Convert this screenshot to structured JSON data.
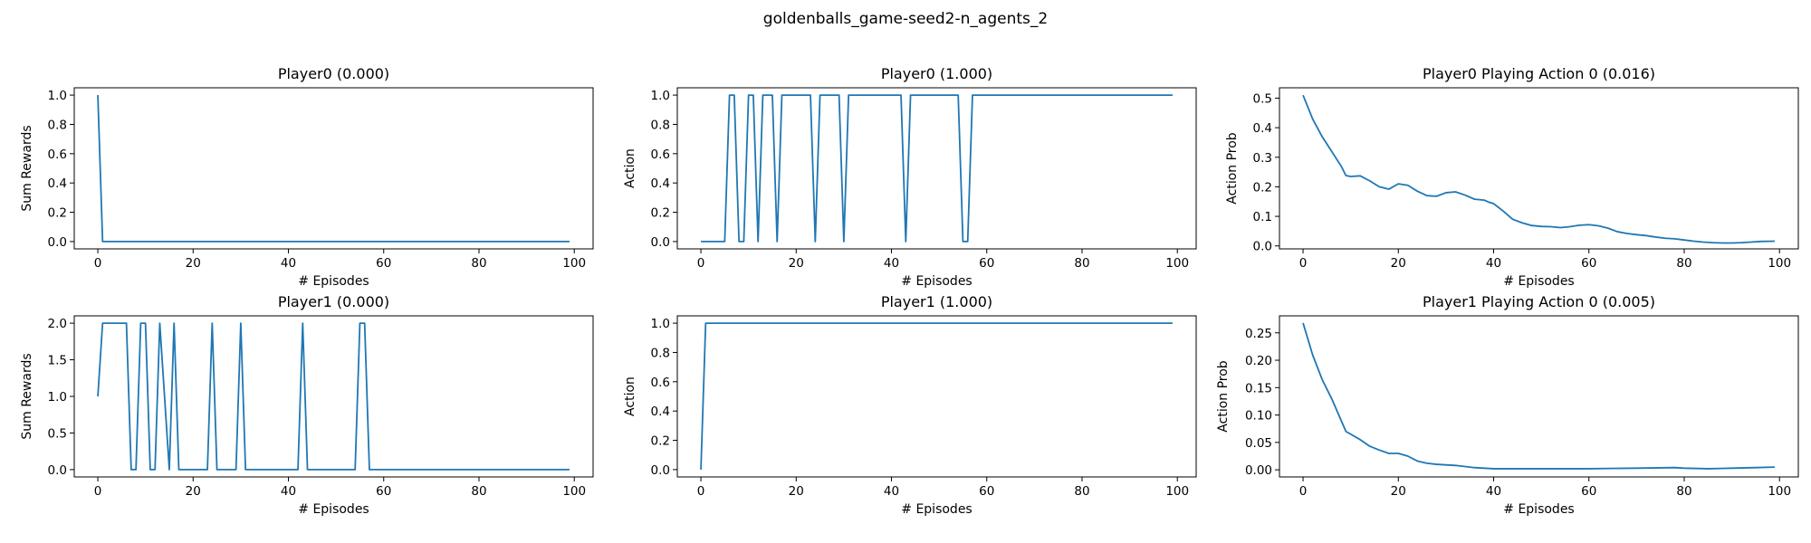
{
  "figure": {
    "title": "goldenballs_game-seed2-n_agents_2"
  },
  "chart_data": [
    {
      "type": "line",
      "title": "Player0 (0.000)",
      "xlabel": "# Episodes",
      "ylabel": "Sum Rewards",
      "xlim": [
        -4.95,
        103.95
      ],
      "ylim": [
        -0.05,
        1.05
      ],
      "xticks": [
        0,
        20,
        40,
        60,
        80,
        100
      ],
      "yticks": [
        0.0,
        0.2,
        0.4,
        0.6,
        0.8,
        1.0
      ],
      "ytick_decimals": 1,
      "series": [
        {
          "x": [
            0,
            1,
            99
          ],
          "y": [
            1,
            0,
            0
          ]
        }
      ]
    },
    {
      "type": "line",
      "title": "Player0 (1.000)",
      "xlabel": "# Episodes",
      "ylabel": "Action",
      "xlim": [
        -4.95,
        103.95
      ],
      "ylim": [
        -0.05,
        1.05
      ],
      "xticks": [
        0,
        20,
        40,
        60,
        80,
        100
      ],
      "yticks": [
        0.0,
        0.2,
        0.4,
        0.6,
        0.8,
        1.0
      ],
      "ytick_decimals": 1,
      "series": [
        {
          "x": [
            0,
            5,
            6,
            7,
            8,
            9,
            10,
            11,
            12,
            13,
            15,
            16,
            17,
            23,
            24,
            25,
            29,
            30,
            31,
            42,
            43,
            44,
            54,
            55,
            56,
            57,
            99
          ],
          "y": [
            0,
            0,
            1,
            1,
            0,
            0,
            1,
            1,
            0,
            1,
            1,
            0,
            1,
            1,
            0,
            1,
            1,
            0,
            1,
            1,
            0,
            1,
            1,
            0,
            0,
            1,
            1
          ]
        }
      ]
    },
    {
      "type": "line",
      "title": "Player0 Playing Action 0 (0.016)",
      "xlabel": "# Episodes",
      "ylabel": "Action Prob",
      "xlim": [
        -4.95,
        103.95
      ],
      "ylim": [
        -0.01,
        0.535
      ],
      "xticks": [
        0,
        20,
        40,
        60,
        80,
        100
      ],
      "yticks": [
        0.0,
        0.1,
        0.2,
        0.3,
        0.4,
        0.5
      ],
      "ytick_decimals": 1,
      "series": [
        {
          "x": [
            0,
            2,
            4,
            6,
            8,
            9,
            10,
            12,
            14,
            16,
            18,
            20,
            22,
            24,
            26,
            28,
            30,
            32,
            34,
            36,
            38,
            39,
            40,
            42,
            44,
            46,
            48,
            50,
            52,
            54,
            56,
            58,
            60,
            62,
            64,
            66,
            68,
            70,
            72,
            74,
            76,
            78,
            80,
            82,
            84,
            86,
            88,
            90,
            92,
            94,
            96,
            99
          ],
          "y": [
            0.51,
            0.43,
            0.37,
            0.32,
            0.27,
            0.238,
            0.235,
            0.237,
            0.22,
            0.2,
            0.192,
            0.21,
            0.205,
            0.185,
            0.17,
            0.168,
            0.18,
            0.183,
            0.172,
            0.158,
            0.155,
            0.148,
            0.143,
            0.118,
            0.09,
            0.078,
            0.069,
            0.066,
            0.065,
            0.062,
            0.065,
            0.07,
            0.072,
            0.068,
            0.06,
            0.048,
            0.042,
            0.038,
            0.035,
            0.03,
            0.026,
            0.024,
            0.02,
            0.016,
            0.013,
            0.011,
            0.01,
            0.01,
            0.011,
            0.013,
            0.015,
            0.016
          ]
        }
      ]
    },
    {
      "type": "line",
      "title": "Player1 (0.000)",
      "xlabel": "# Episodes",
      "ylabel": "Sum Rewards",
      "xlim": [
        -4.95,
        103.95
      ],
      "ylim": [
        -0.1,
        2.1
      ],
      "xticks": [
        0,
        20,
        40,
        60,
        80,
        100
      ],
      "yticks": [
        0.0,
        0.5,
        1.0,
        1.5,
        2.0
      ],
      "ytick_decimals": 1,
      "series": [
        {
          "x": [
            0,
            1,
            5,
            6,
            7,
            8,
            9,
            10,
            11,
            12,
            13,
            15,
            16,
            17,
            23,
            24,
            25,
            29,
            30,
            31,
            42,
            43,
            44,
            54,
            55,
            56,
            57,
            99
          ],
          "y": [
            1,
            2,
            2,
            2,
            0,
            0,
            2,
            2,
            0,
            0,
            2,
            0,
            2,
            0,
            0,
            2,
            0,
            0,
            2,
            0,
            0,
            2,
            0,
            0,
            2,
            2,
            0,
            0
          ]
        }
      ]
    },
    {
      "type": "line",
      "title": "Player1 (1.000)",
      "xlabel": "# Episodes",
      "ylabel": "Action",
      "xlim": [
        -4.95,
        103.95
      ],
      "ylim": [
        -0.05,
        1.05
      ],
      "xticks": [
        0,
        20,
        40,
        60,
        80,
        100
      ],
      "yticks": [
        0.0,
        0.2,
        0.4,
        0.6,
        0.8,
        1.0
      ],
      "ytick_decimals": 1,
      "series": [
        {
          "x": [
            0,
            1,
            99
          ],
          "y": [
            0,
            1,
            1
          ]
        }
      ]
    },
    {
      "type": "line",
      "title": "Player1 Playing Action 0 (0.005)",
      "xlabel": "# Episodes",
      "ylabel": "Action Prob",
      "xlim": [
        -4.95,
        103.95
      ],
      "ylim": [
        -0.013,
        0.281
      ],
      "xticks": [
        0,
        20,
        40,
        60,
        80,
        100
      ],
      "yticks": [
        0.0,
        0.05,
        0.1,
        0.15,
        0.2,
        0.25
      ],
      "ytick_decimals": 2,
      "series": [
        {
          "x": [
            0,
            2,
            4,
            6,
            8,
            9,
            10,
            12,
            14,
            16,
            18,
            20,
            22,
            24,
            26,
            28,
            30,
            32,
            34,
            36,
            38,
            40,
            45,
            50,
            60,
            70,
            78,
            80,
            85,
            90,
            95,
            99
          ],
          "y": [
            0.268,
            0.21,
            0.165,
            0.13,
            0.09,
            0.07,
            0.065,
            0.055,
            0.043,
            0.036,
            0.03,
            0.03,
            0.025,
            0.016,
            0.012,
            0.01,
            0.009,
            0.008,
            0.006,
            0.004,
            0.003,
            0.002,
            0.002,
            0.002,
            0.002,
            0.003,
            0.004,
            0.003,
            0.002,
            0.003,
            0.004,
            0.005
          ]
        }
      ]
    }
  ]
}
